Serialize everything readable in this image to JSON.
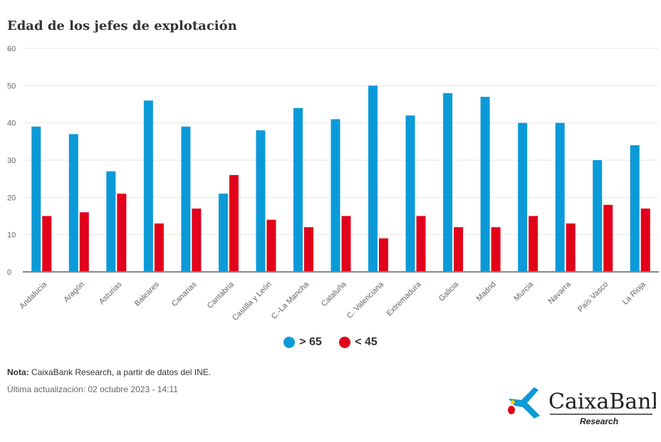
{
  "chart_data": {
    "type": "bar",
    "title": "Edad de los jefes de explotación",
    "categories": [
      "Andalucía",
      "Aragón",
      "Asturias",
      "Baleares",
      "Canarias",
      "Cantabria",
      "Castilla y León",
      "C.-La Mancha",
      "Cataluña",
      "C. Valenciana",
      "Extremadura",
      "Galicia",
      "Madrid",
      "Murcia",
      "Navarra",
      "País Vasco",
      "La Rioja"
    ],
    "series": [
      {
        "name": "> 65",
        "color": "#0b9ad8",
        "values": [
          39,
          37,
          27,
          46,
          39,
          21,
          38,
          44,
          41,
          50,
          42,
          48,
          47,
          40,
          40,
          30,
          34
        ]
      },
      {
        "name": "< 45",
        "color": "#e2001a",
        "values": [
          15,
          16,
          21,
          13,
          17,
          26,
          14,
          12,
          15,
          9,
          15,
          12,
          12,
          15,
          13,
          18,
          17
        ]
      }
    ],
    "ylim": [
      0,
      60
    ],
    "yticks": [
      0,
      10,
      20,
      30,
      40,
      50,
      60
    ],
    "grid": true,
    "legend": "bottom-center"
  },
  "footer": {
    "note_label": "Nota:",
    "note_text": " CaixaBank Research, a partir de datos del INE.",
    "updated": "Última actualización: 02 octubre 2023 - 14:11"
  },
  "logo": {
    "brand": "CaixaBank",
    "sub": "Research"
  }
}
